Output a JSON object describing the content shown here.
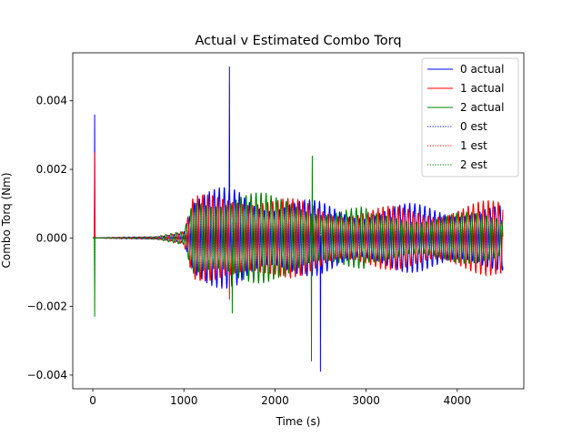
{
  "chart_data": {
    "type": "line",
    "title": "Actual v Estimated Combo Torq",
    "xlabel": "Time (s)",
    "ylabel": "Combo Torq (Nm)",
    "xlim": [
      -220,
      4730
    ],
    "ylim": [
      -0.0044,
      0.0054
    ],
    "xticks": [
      0,
      1000,
      2000,
      3000,
      4000
    ],
    "xtick_labels": [
      "0",
      "1000",
      "2000",
      "3000",
      "4000"
    ],
    "yticks": [
      -0.004,
      -0.002,
      0.0,
      0.002,
      0.004
    ],
    "ytick_labels": [
      "−0.004",
      "−0.002",
      "0.000",
      "0.002",
      "0.004"
    ],
    "grid": false,
    "legend_position": "top-right",
    "legend": [
      {
        "label": "0 actual",
        "color": "#0000ff",
        "style": "solid"
      },
      {
        "label": "1 actual",
        "color": "#ff0000",
        "style": "solid"
      },
      {
        "label": "2 actual",
        "color": "#008000",
        "style": "solid"
      },
      {
        "label": "0 est",
        "color": "#0000ff",
        "style": "dotted"
      },
      {
        "label": "1 est",
        "color": "#ff0000",
        "style": "dotted"
      },
      {
        "label": "2 est",
        "color": "#008000",
        "style": "dotted"
      }
    ],
    "series_profile": {
      "x_start": 0,
      "x_end": 4500,
      "oscillation_period": 55,
      "initial_spikes": [
        {
          "series": "0 actual",
          "x": 20,
          "y": 0.0036
        },
        {
          "series": "1 actual",
          "x": 20,
          "y": 0.0025
        },
        {
          "series": "2 actual",
          "x": 20,
          "y": -0.0023
        }
      ],
      "notable_spikes": [
        {
          "series": "0 actual",
          "x": 1500,
          "y": 0.005
        },
        {
          "series": "1 actual",
          "x": 1500,
          "y": -0.0018
        },
        {
          "series": "2 actual",
          "x": 1530,
          "y": -0.0022
        },
        {
          "series": "2 actual",
          "x": 2410,
          "y": 0.0024
        },
        {
          "series": "2 actual",
          "x": 2400,
          "y": -0.0036
        },
        {
          "series": "0 actual",
          "x": 2500,
          "y": -0.0039
        }
      ],
      "amplitude_envelope": [
        {
          "x": 0,
          "amp": 0.0
        },
        {
          "x": 700,
          "amp": 5e-05
        },
        {
          "x": 1000,
          "amp": 0.0002
        },
        {
          "x": 1100,
          "amp": 0.0012
        },
        {
          "x": 1300,
          "amp": 0.0014
        },
        {
          "x": 1600,
          "amp": 0.0017
        },
        {
          "x": 2000,
          "amp": 0.0012
        },
        {
          "x": 2500,
          "amp": 0.0011
        },
        {
          "x": 3000,
          "amp": 0.0009
        },
        {
          "x": 4500,
          "amp": 0.0009
        }
      ]
    }
  }
}
